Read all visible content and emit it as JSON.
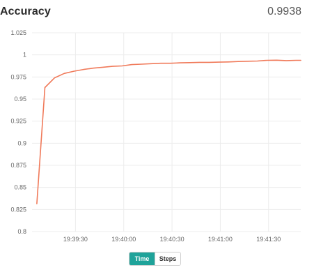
{
  "header": {
    "title": "Accuracy",
    "current_value": "0.9938"
  },
  "toggle": {
    "time_label": "Time",
    "steps_label": "Steps",
    "active": "time"
  },
  "colors": {
    "line": "#f07a5a",
    "grid": "#ececec",
    "accent": "#1fa39a"
  },
  "chart_data": {
    "type": "line",
    "title": "Accuracy",
    "xlabel": "",
    "ylabel": "",
    "x_range": [
      "19:39:03",
      "19:41:50"
    ],
    "ylim": [
      0.8,
      1.025
    ],
    "y_ticks": [
      "0.8",
      "0.825",
      "0.85",
      "0.875",
      "0.9",
      "0.925",
      "0.95",
      "0.975",
      "1",
      "1.025"
    ],
    "x_ticks": [
      "19:39:30",
      "19:40:00",
      "19:40:30",
      "19:41:00",
      "19:41:30"
    ],
    "grid": true,
    "series": [
      {
        "x": [
          "19:39:06",
          "19:39:11",
          "19:39:17",
          "19:39:23",
          "19:39:29",
          "19:39:35",
          "19:39:41",
          "19:39:47",
          "19:39:53",
          "19:39:59",
          "19:40:05",
          "19:40:11",
          "19:40:17",
          "19:40:23",
          "19:40:29",
          "19:40:35",
          "19:40:41",
          "19:40:47",
          "19:40:53",
          "19:40:59",
          "19:41:05",
          "19:41:11",
          "19:41:17",
          "19:41:23",
          "19:41:29",
          "19:41:35",
          "19:41:41",
          "19:41:47",
          "19:41:50"
        ],
        "y": [
          0.8315,
          0.963,
          0.974,
          0.979,
          0.9815,
          0.9835,
          0.985,
          0.986,
          0.987,
          0.9875,
          0.989,
          0.9895,
          0.99,
          0.9905,
          0.9905,
          0.991,
          0.9912,
          0.9915,
          0.9915,
          0.9918,
          0.992,
          0.9925,
          0.9928,
          0.993,
          0.9938,
          0.994,
          0.9935,
          0.9938,
          0.9938
        ]
      }
    ]
  }
}
